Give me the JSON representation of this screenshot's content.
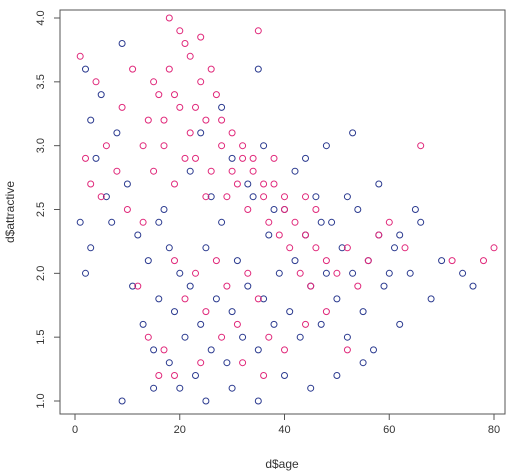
{
  "chart_data": {
    "type": "scatter",
    "title": "",
    "xlabel": "d$age",
    "ylabel": "d$attractive",
    "xlim": [
      0,
      80
    ],
    "ylim": [
      1.0,
      4.0
    ],
    "x_ticks": [
      "0",
      "20",
      "40",
      "60",
      "80"
    ],
    "y_ticks": [
      "1.0",
      "1.5",
      "2.0",
      "2.5",
      "3.0",
      "3.5",
      "4.0"
    ],
    "grid": false,
    "legend": "none",
    "marker": "open-circle",
    "series": [
      {
        "color": "#2b3a8f",
        "points": [
          [
            2,
            3.6
          ],
          [
            3,
            3.2
          ],
          [
            1,
            2.4
          ],
          [
            4,
            2.9
          ],
          [
            5,
            3.4
          ],
          [
            3,
            2.2
          ],
          [
            6,
            2.6
          ],
          [
            8,
            3.1
          ],
          [
            2,
            2.0
          ],
          [
            7,
            2.4
          ],
          [
            9,
            3.8
          ],
          [
            10,
            2.7
          ],
          [
            12,
            2.3
          ],
          [
            11,
            1.9
          ],
          [
            13,
            1.6
          ],
          [
            14,
            2.1
          ],
          [
            15,
            1.4
          ],
          [
            16,
            1.8
          ],
          [
            17,
            2.5
          ],
          [
            18,
            1.3
          ],
          [
            19,
            1.7
          ],
          [
            20,
            2.0
          ],
          [
            21,
            1.5
          ],
          [
            22,
            1.9
          ],
          [
            23,
            1.2
          ],
          [
            24,
            1.6
          ],
          [
            25,
            2.2
          ],
          [
            26,
            1.4
          ],
          [
            27,
            1.8
          ],
          [
            28,
            2.4
          ],
          [
            29,
            1.3
          ],
          [
            30,
            1.7
          ],
          [
            31,
            2.1
          ],
          [
            32,
            1.5
          ],
          [
            33,
            1.9
          ],
          [
            34,
            2.6
          ],
          [
            35,
            1.4
          ],
          [
            36,
            1.8
          ],
          [
            37,
            2.3
          ],
          [
            38,
            1.6
          ],
          [
            39,
            2.0
          ],
          [
            40,
            2.5
          ],
          [
            41,
            1.7
          ],
          [
            42,
            2.1
          ],
          [
            43,
            1.5
          ],
          [
            44,
            2.3
          ],
          [
            45,
            1.9
          ],
          [
            46,
            2.6
          ],
          [
            47,
            1.6
          ],
          [
            48,
            2.0
          ],
          [
            49,
            2.4
          ],
          [
            50,
            1.8
          ],
          [
            51,
            2.2
          ],
          [
            52,
            1.5
          ],
          [
            53,
            2.0
          ],
          [
            54,
            2.5
          ],
          [
            55,
            1.7
          ],
          [
            56,
            2.1
          ],
          [
            57,
            1.4
          ],
          [
            58,
            2.3
          ],
          [
            59,
            1.9
          ],
          [
            60,
            2.0
          ],
          [
            61,
            2.2
          ],
          [
            62,
            1.6
          ],
          [
            64,
            2.0
          ],
          [
            66,
            2.4
          ],
          [
            68,
            1.8
          ],
          [
            70,
            2.1
          ],
          [
            74,
            2.0
          ],
          [
            76,
            1.9
          ],
          [
            20,
            1.1
          ],
          [
            25,
            1.0
          ],
          [
            30,
            1.1
          ],
          [
            35,
            1.0
          ],
          [
            40,
            1.2
          ],
          [
            15,
            1.1
          ],
          [
            45,
            1.1
          ],
          [
            50,
            1.2
          ],
          [
            55,
            1.3
          ],
          [
            9,
            1.0
          ],
          [
            22,
            2.8
          ],
          [
            26,
            2.6
          ],
          [
            30,
            2.9
          ],
          [
            33,
            2.7
          ],
          [
            38,
            2.5
          ],
          [
            42,
            2.8
          ],
          [
            47,
            2.4
          ],
          [
            52,
            2.6
          ],
          [
            18,
            2.2
          ],
          [
            16,
            2.4
          ],
          [
            35,
            3.6
          ],
          [
            28,
            3.3
          ],
          [
            24,
            3.1
          ],
          [
            36,
            3.0
          ],
          [
            44,
            2.9
          ],
          [
            48,
            3.0
          ],
          [
            53,
            3.1
          ],
          [
            58,
            2.7
          ],
          [
            62,
            2.3
          ],
          [
            65,
            2.5
          ]
        ]
      },
      {
        "color": "#e0287a",
        "points": [
          [
            1,
            3.7
          ],
          [
            2,
            2.9
          ],
          [
            4,
            3.5
          ],
          [
            5,
            2.6
          ],
          [
            6,
            3.0
          ],
          [
            3,
            2.7
          ],
          [
            8,
            2.8
          ],
          [
            9,
            3.3
          ],
          [
            10,
            2.5
          ],
          [
            11,
            3.6
          ],
          [
            13,
            2.4
          ],
          [
            14,
            3.2
          ],
          [
            15,
            2.8
          ],
          [
            16,
            3.4
          ],
          [
            17,
            3.0
          ],
          [
            18,
            3.6
          ],
          [
            19,
            2.7
          ],
          [
            20,
            3.3
          ],
          [
            21,
            3.8
          ],
          [
            22,
            3.1
          ],
          [
            23,
            2.9
          ],
          [
            24,
            3.5
          ],
          [
            25,
            3.2
          ],
          [
            26,
            2.8
          ],
          [
            27,
            3.4
          ],
          [
            28,
            3.0
          ],
          [
            29,
            2.6
          ],
          [
            30,
            3.1
          ],
          [
            31,
            2.7
          ],
          [
            32,
            2.9
          ],
          [
            33,
            2.5
          ],
          [
            34,
            2.8
          ],
          [
            35,
            3.9
          ],
          [
            36,
            2.6
          ],
          [
            37,
            2.4
          ],
          [
            38,
            2.7
          ],
          [
            39,
            2.3
          ],
          [
            40,
            2.5
          ],
          [
            41,
            2.2
          ],
          [
            42,
            2.4
          ],
          [
            43,
            2.0
          ],
          [
            44,
            2.3
          ],
          [
            45,
            1.9
          ],
          [
            46,
            2.2
          ],
          [
            48,
            2.1
          ],
          [
            50,
            2.0
          ],
          [
            52,
            2.2
          ],
          [
            54,
            1.9
          ],
          [
            56,
            2.1
          ],
          [
            58,
            2.3
          ],
          [
            60,
            2.4
          ],
          [
            63,
            2.2
          ],
          [
            66,
            3.0
          ],
          [
            72,
            2.1
          ],
          [
            78,
            2.1
          ],
          [
            80,
            2.2
          ],
          [
            18,
            4.0
          ],
          [
            20,
            3.9
          ],
          [
            24,
            3.85
          ],
          [
            22,
            3.7
          ],
          [
            19,
            2.1
          ],
          [
            21,
            1.8
          ],
          [
            23,
            2.0
          ],
          [
            25,
            1.7
          ],
          [
            27,
            2.1
          ],
          [
            29,
            1.9
          ],
          [
            31,
            1.6
          ],
          [
            33,
            2.0
          ],
          [
            35,
            1.8
          ],
          [
            37,
            1.5
          ],
          [
            17,
            1.4
          ],
          [
            19,
            1.2
          ],
          [
            24,
            1.3
          ],
          [
            28,
            1.5
          ],
          [
            32,
            1.3
          ],
          [
            36,
            1.2
          ],
          [
            40,
            1.4
          ],
          [
            44,
            1.6
          ],
          [
            48,
            1.7
          ],
          [
            52,
            1.4
          ],
          [
            12,
            1.9
          ],
          [
            14,
            1.5
          ],
          [
            16,
            1.2
          ],
          [
            13,
            3.0
          ],
          [
            15,
            3.5
          ],
          [
            17,
            3.2
          ],
          [
            19,
            3.4
          ],
          [
            21,
            2.9
          ],
          [
            23,
            3.3
          ],
          [
            25,
            2.6
          ],
          [
            26,
            3.6
          ],
          [
            28,
            3.2
          ],
          [
            30,
            2.8
          ],
          [
            32,
            3.0
          ],
          [
            34,
            2.9
          ],
          [
            36,
            2.7
          ],
          [
            38,
            2.9
          ],
          [
            40,
            2.6
          ],
          [
            44,
            2.6
          ],
          [
            46,
            2.5
          ]
        ]
      }
    ]
  }
}
